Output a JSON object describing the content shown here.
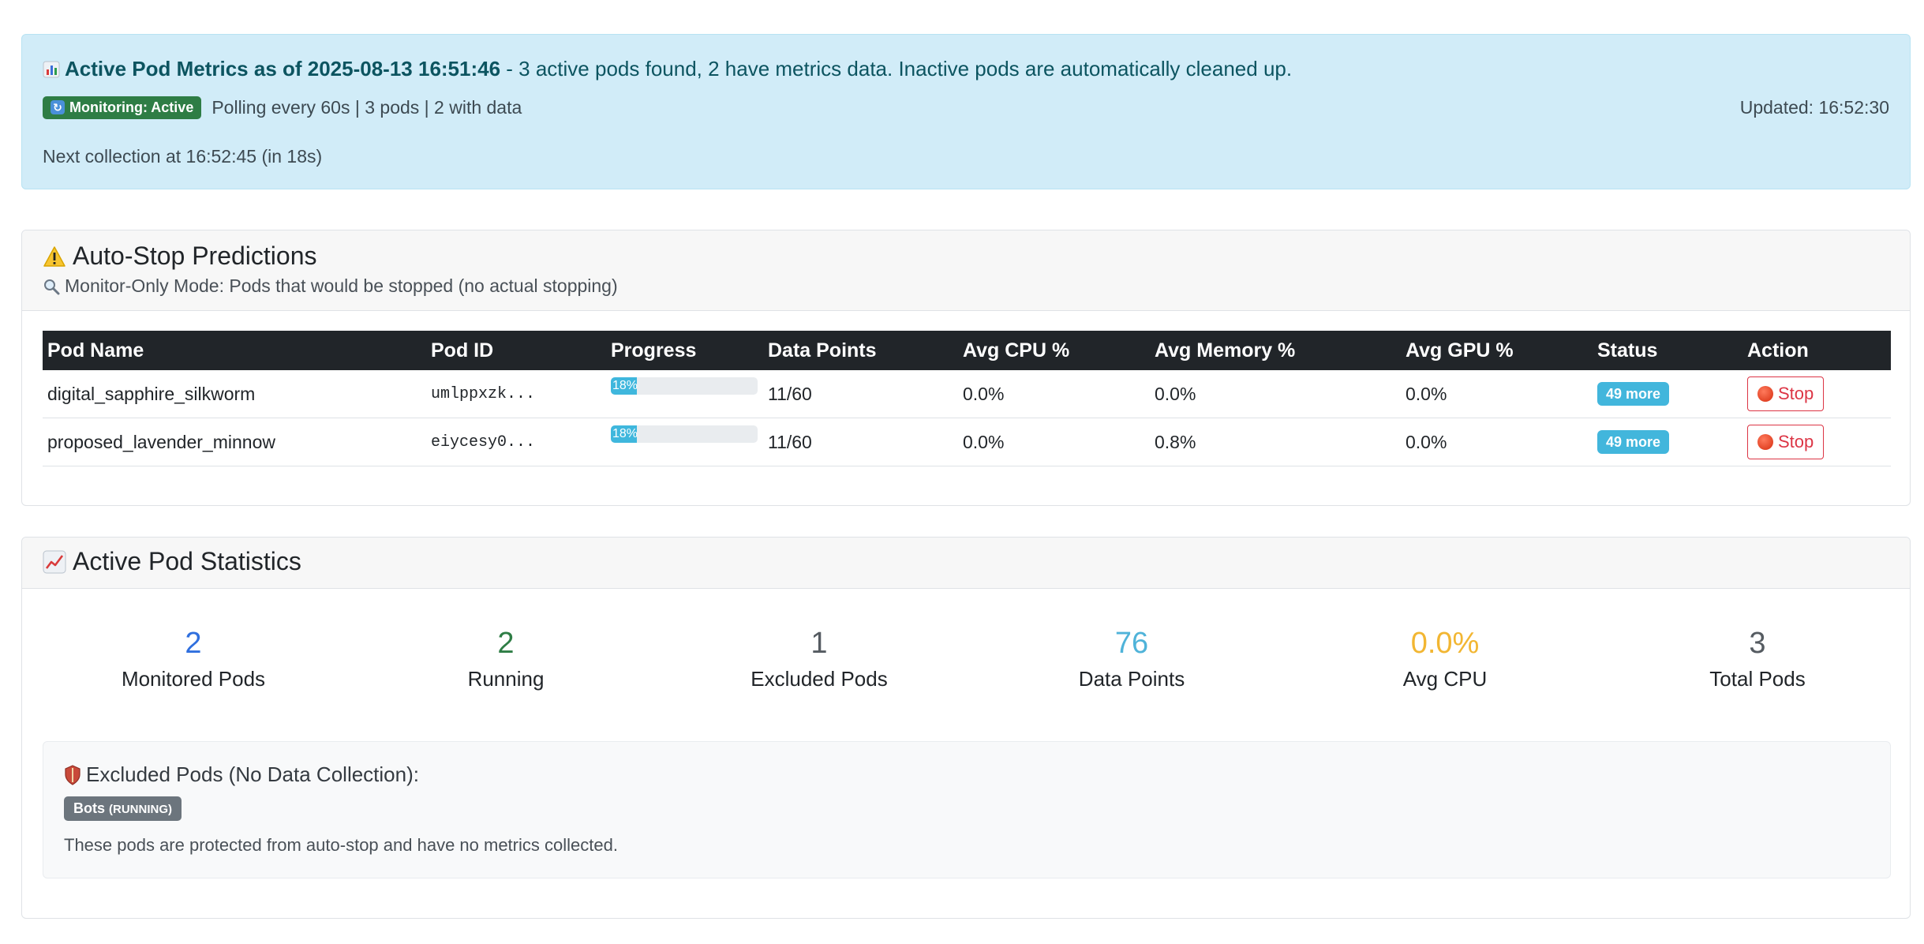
{
  "banner": {
    "title_bold": "Active Pod Metrics as of 2025-08-13 16:51:46",
    "title_rest": " - 3 active pods found, 2 have metrics data. Inactive pods are automatically cleaned up.",
    "monitoring_badge": "Monitoring: Active",
    "polling_text": "Polling every 60s | 3 pods | 2 with data",
    "updated": "Updated: 16:52:30",
    "next_collection": "Next collection at 16:52:45 (in 18s)"
  },
  "predictions": {
    "title": "Auto-Stop Predictions",
    "subtitle": "Monitor-Only Mode: Pods that would be stopped (no actual stopping)",
    "columns": [
      "Pod Name",
      "Pod ID",
      "Progress",
      "Data Points",
      "Avg CPU %",
      "Avg Memory %",
      "Avg GPU %",
      "Status",
      "Action"
    ],
    "rows": [
      {
        "name": "digital_sapphire_silkworm",
        "id": "umlppxzk...",
        "progress": "18%",
        "progress_value": 18,
        "data_points": "11/60",
        "cpu": "0.0%",
        "memory": "0.0%",
        "gpu": "0.0%",
        "status": "49 more",
        "action": "Stop"
      },
      {
        "name": "proposed_lavender_minnow",
        "id": "eiycesy0...",
        "progress": "18%",
        "progress_value": 18,
        "data_points": "11/60",
        "cpu": "0.0%",
        "memory": "0.8%",
        "gpu": "0.0%",
        "status": "49 more",
        "action": "Stop"
      }
    ]
  },
  "statistics": {
    "title": "Active Pod Statistics",
    "items": [
      {
        "value": "2",
        "label": "Monitored Pods",
        "color": "#2f6fde"
      },
      {
        "value": "2",
        "label": "Running",
        "color": "#2e7d45"
      },
      {
        "value": "1",
        "label": "Excluded Pods",
        "color": "#555b61"
      },
      {
        "value": "76",
        "label": "Data Points",
        "color": "#4fb3d9"
      },
      {
        "value": "0.0%",
        "label": "Avg CPU",
        "color": "#f2b632"
      },
      {
        "value": "3",
        "label": "Total Pods",
        "color": "#555b61"
      }
    ],
    "excluded": {
      "title": "Excluded Pods (No Data Collection):",
      "badge_name": "Bots",
      "badge_status": "(RUNNING)",
      "note": "These pods are protected from auto-stop and have no metrics collected."
    }
  }
}
